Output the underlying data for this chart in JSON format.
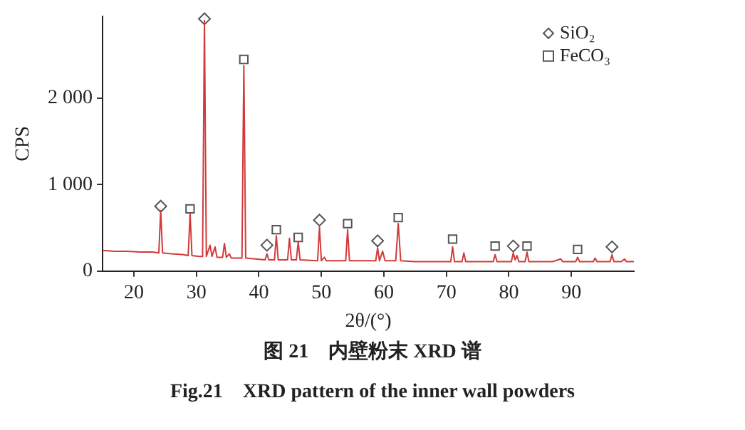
{
  "chart_data": {
    "type": "line",
    "xlabel": "2θ/(°)",
    "ylabel": "CPS",
    "xlim": [
      15,
      100
    ],
    "ylim": [
      0,
      2950
    ],
    "xticks": [
      20,
      30,
      40,
      50,
      60,
      70,
      80,
      90
    ],
    "yticks": [
      0,
      {
        "value": 1000,
        "label": "1 000"
      },
      {
        "value": 2000,
        "label": "2 000"
      }
    ],
    "grid": false,
    "legend": "top right",
    "annotations": [
      "图 21　内壁粉末 XRD 谱",
      "Fig.21　XRD pattern of the inner wall powders"
    ],
    "series": [
      {
        "type": "line",
        "color": "#d23a3a",
        "x": [
          15,
          17,
          19,
          21,
          23,
          24.0,
          24.3,
          24.6,
          26,
          28,
          28.7,
          29.0,
          29.3,
          30.5,
          31.0,
          31.3,
          31.6,
          32.2,
          32.5,
          33.0,
          33.3,
          34.2,
          34.5,
          34.8,
          35.3,
          35.6,
          37.3,
          37.6,
          37.9,
          39.5,
          41.0,
          41.3,
          41.6,
          42.5,
          42.8,
          43.1,
          44.6,
          44.9,
          45.2,
          46.0,
          46.3,
          46.6,
          49.4,
          49.7,
          50.0,
          50.5,
          50.8,
          53.9,
          54.2,
          54.5,
          57,
          58.7,
          59.0,
          59.3,
          59.8,
          60.2,
          61.9,
          62.3,
          62.7,
          65,
          68,
          70.7,
          71.0,
          71.3,
          72.5,
          72.8,
          73.1,
          76,
          77.5,
          77.8,
          78.1,
          80.4,
          80.7,
          81.0,
          81.3,
          81.6,
          82.6,
          82.9,
          83.2,
          87,
          88.3,
          88.6,
          90.7,
          91.0,
          91.3,
          93.5,
          93.8,
          94.1,
          96.2,
          96.5,
          96.8,
          98,
          98.5,
          98.8,
          100
        ],
        "values": [
          240,
          230,
          230,
          220,
          220,
          210,
          700,
          210,
          200,
          190,
          180,
          670,
          180,
          170,
          170,
          2900,
          170,
          300,
          170,
          280,
          160,
          160,
          320,
          160,
          200,
          150,
          150,
          2380,
          150,
          140,
          130,
          200,
          130,
          130,
          410,
          130,
          130,
          380,
          130,
          130,
          340,
          130,
          120,
          510,
          120,
          160,
          120,
          120,
          480,
          120,
          120,
          120,
          270,
          120,
          230,
          120,
          120,
          550,
          120,
          110,
          110,
          110,
          280,
          110,
          110,
          210,
          110,
          110,
          110,
          190,
          110,
          110,
          210,
          130,
          180,
          110,
          110,
          220,
          110,
          110,
          140,
          110,
          110,
          160,
          110,
          110,
          150,
          110,
          110,
          190,
          110,
          110,
          140,
          110,
          110
        ]
      },
      {
        "type": "scatter",
        "name": "SiO₂",
        "marker": "diamond",
        "color": "#555555",
        "x": [
          24.3,
          31.3,
          41.3,
          49.7,
          59.0,
          80.7,
          96.5
        ],
        "values": [
          750,
          2920,
          300,
          590,
          350,
          290,
          280
        ]
      },
      {
        "type": "scatter",
        "name": "FeCO₃",
        "marker": "square",
        "color": "#555555",
        "x": [
          29.0,
          37.6,
          42.8,
          46.3,
          54.2,
          62.3,
          71.0,
          77.8,
          82.9,
          91.0
        ],
        "values": [
          720,
          2450,
          480,
          390,
          550,
          620,
          370,
          290,
          290,
          250
        ]
      }
    ]
  }
}
